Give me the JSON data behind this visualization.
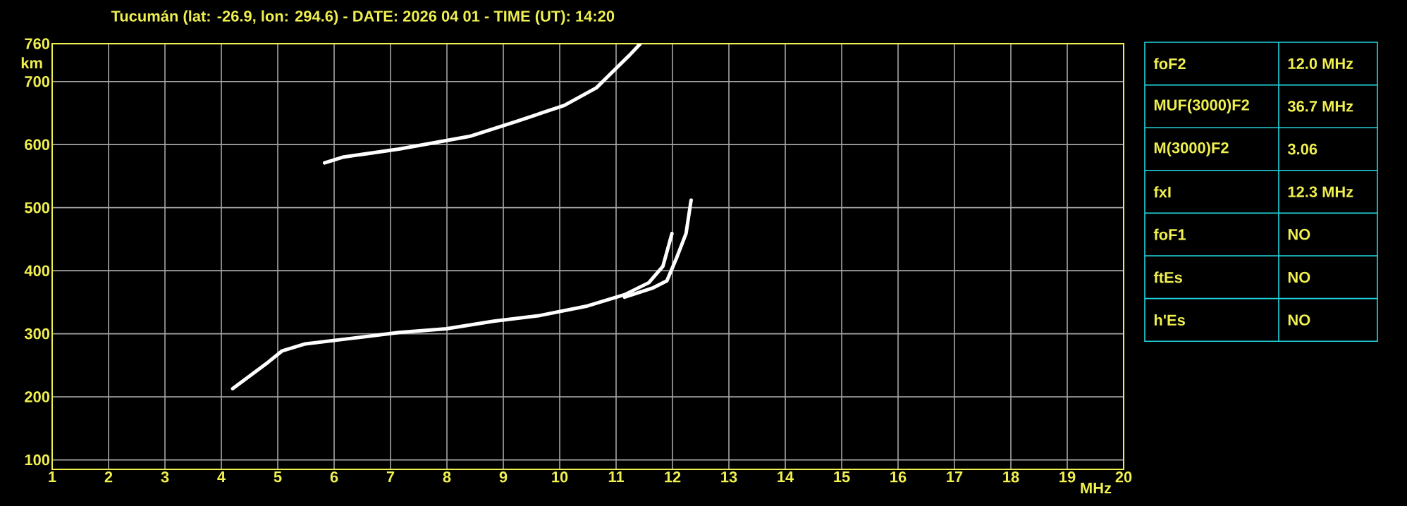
{
  "chart_data": [
    {
      "type": "line",
      "title": "Tucumán (lat: -26.9, lon: 294.6) - DATE: 2026 04 01 - TIME (UT): 14:20",
      "xlabel": "MHz",
      "ylabel": "km",
      "xlim": [
        1,
        20
      ],
      "ylim": [
        85,
        760
      ],
      "xticks": [
        1,
        2,
        3,
        4,
        5,
        6,
        7,
        8,
        9,
        10,
        11,
        12,
        13,
        14,
        15,
        16,
        17,
        18,
        19,
        20
      ],
      "yticks": [
        100,
        200,
        300,
        400,
        500,
        600,
        700,
        760
      ],
      "grid": true,
      "marker": "none",
      "line_style": "solid",
      "series": [
        {
          "color": "#ffffff",
          "x": [
            4.2,
            4.83,
            5.08,
            5.49,
            6.33,
            7.15,
            7.99,
            8.83,
            9.65,
            10.49,
            11.15,
            11.58,
            11.83,
            11.99
          ],
          "values": [
            213,
            255,
            273,
            284,
            293,
            302,
            308,
            320,
            329,
            344,
            362,
            381,
            407,
            459
          ]
        },
        {
          "color": "#ffffff",
          "x": [
            11.15,
            11.66,
            11.9,
            12.08,
            12.24,
            12.33
          ],
          "values": [
            358,
            373,
            384,
            422,
            459,
            512
          ]
        },
        {
          "color": "#ffffff",
          "x": [
            5.83,
            6.15,
            7.15,
            8.4,
            9.24,
            10.08,
            10.65,
            10.99,
            11.24,
            11.43
          ],
          "values": [
            571,
            580,
            593,
            613,
            637,
            662,
            690,
            720,
            742,
            760
          ]
        }
      ]
    },
    {
      "type": "other",
      "annotations": [
        "foF2",
        "12.0 MHz",
        "MUF(3000)F2",
        "36.7 MHz",
        "M(3000)F2",
        "3.06",
        "fxI",
        "12.3 MHz",
        "foF1",
        "NO",
        "ftEs",
        "NO",
        "h'Es",
        "NO"
      ]
    }
  ]
}
